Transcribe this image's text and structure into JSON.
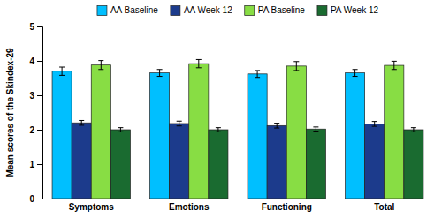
{
  "chart_data": {
    "type": "bar",
    "categories": [
      "Symptoms",
      "Emotions",
      "Functioning",
      "Total"
    ],
    "series": [
      {
        "name": "AA Baseline",
        "color": "#00BFFF",
        "values": [
          3.7,
          3.65,
          3.62,
          3.65
        ],
        "errors": [
          0.12,
          0.1,
          0.1,
          0.1
        ]
      },
      {
        "name": "AA Week 12",
        "color": "#1C3B8C",
        "values": [
          2.2,
          2.18,
          2.12,
          2.17
        ],
        "errors": [
          0.07,
          0.07,
          0.07,
          0.07
        ]
      },
      {
        "name": "PA Baseline",
        "color": "#88DD44",
        "values": [
          3.88,
          3.92,
          3.85,
          3.87
        ],
        "errors": [
          0.13,
          0.12,
          0.13,
          0.12
        ]
      },
      {
        "name": "PA Week 12",
        "color": "#1A6B30",
        "values": [
          2.0,
          2.0,
          2.02,
          2.0
        ],
        "errors": [
          0.06,
          0.06,
          0.06,
          0.06
        ]
      }
    ],
    "ylabel": "Mean scores of the Skindex-29",
    "ylim": [
      0,
      5
    ],
    "yticks": [
      0,
      1,
      2,
      3,
      4,
      5
    ],
    "grid": false,
    "legend": "top"
  }
}
